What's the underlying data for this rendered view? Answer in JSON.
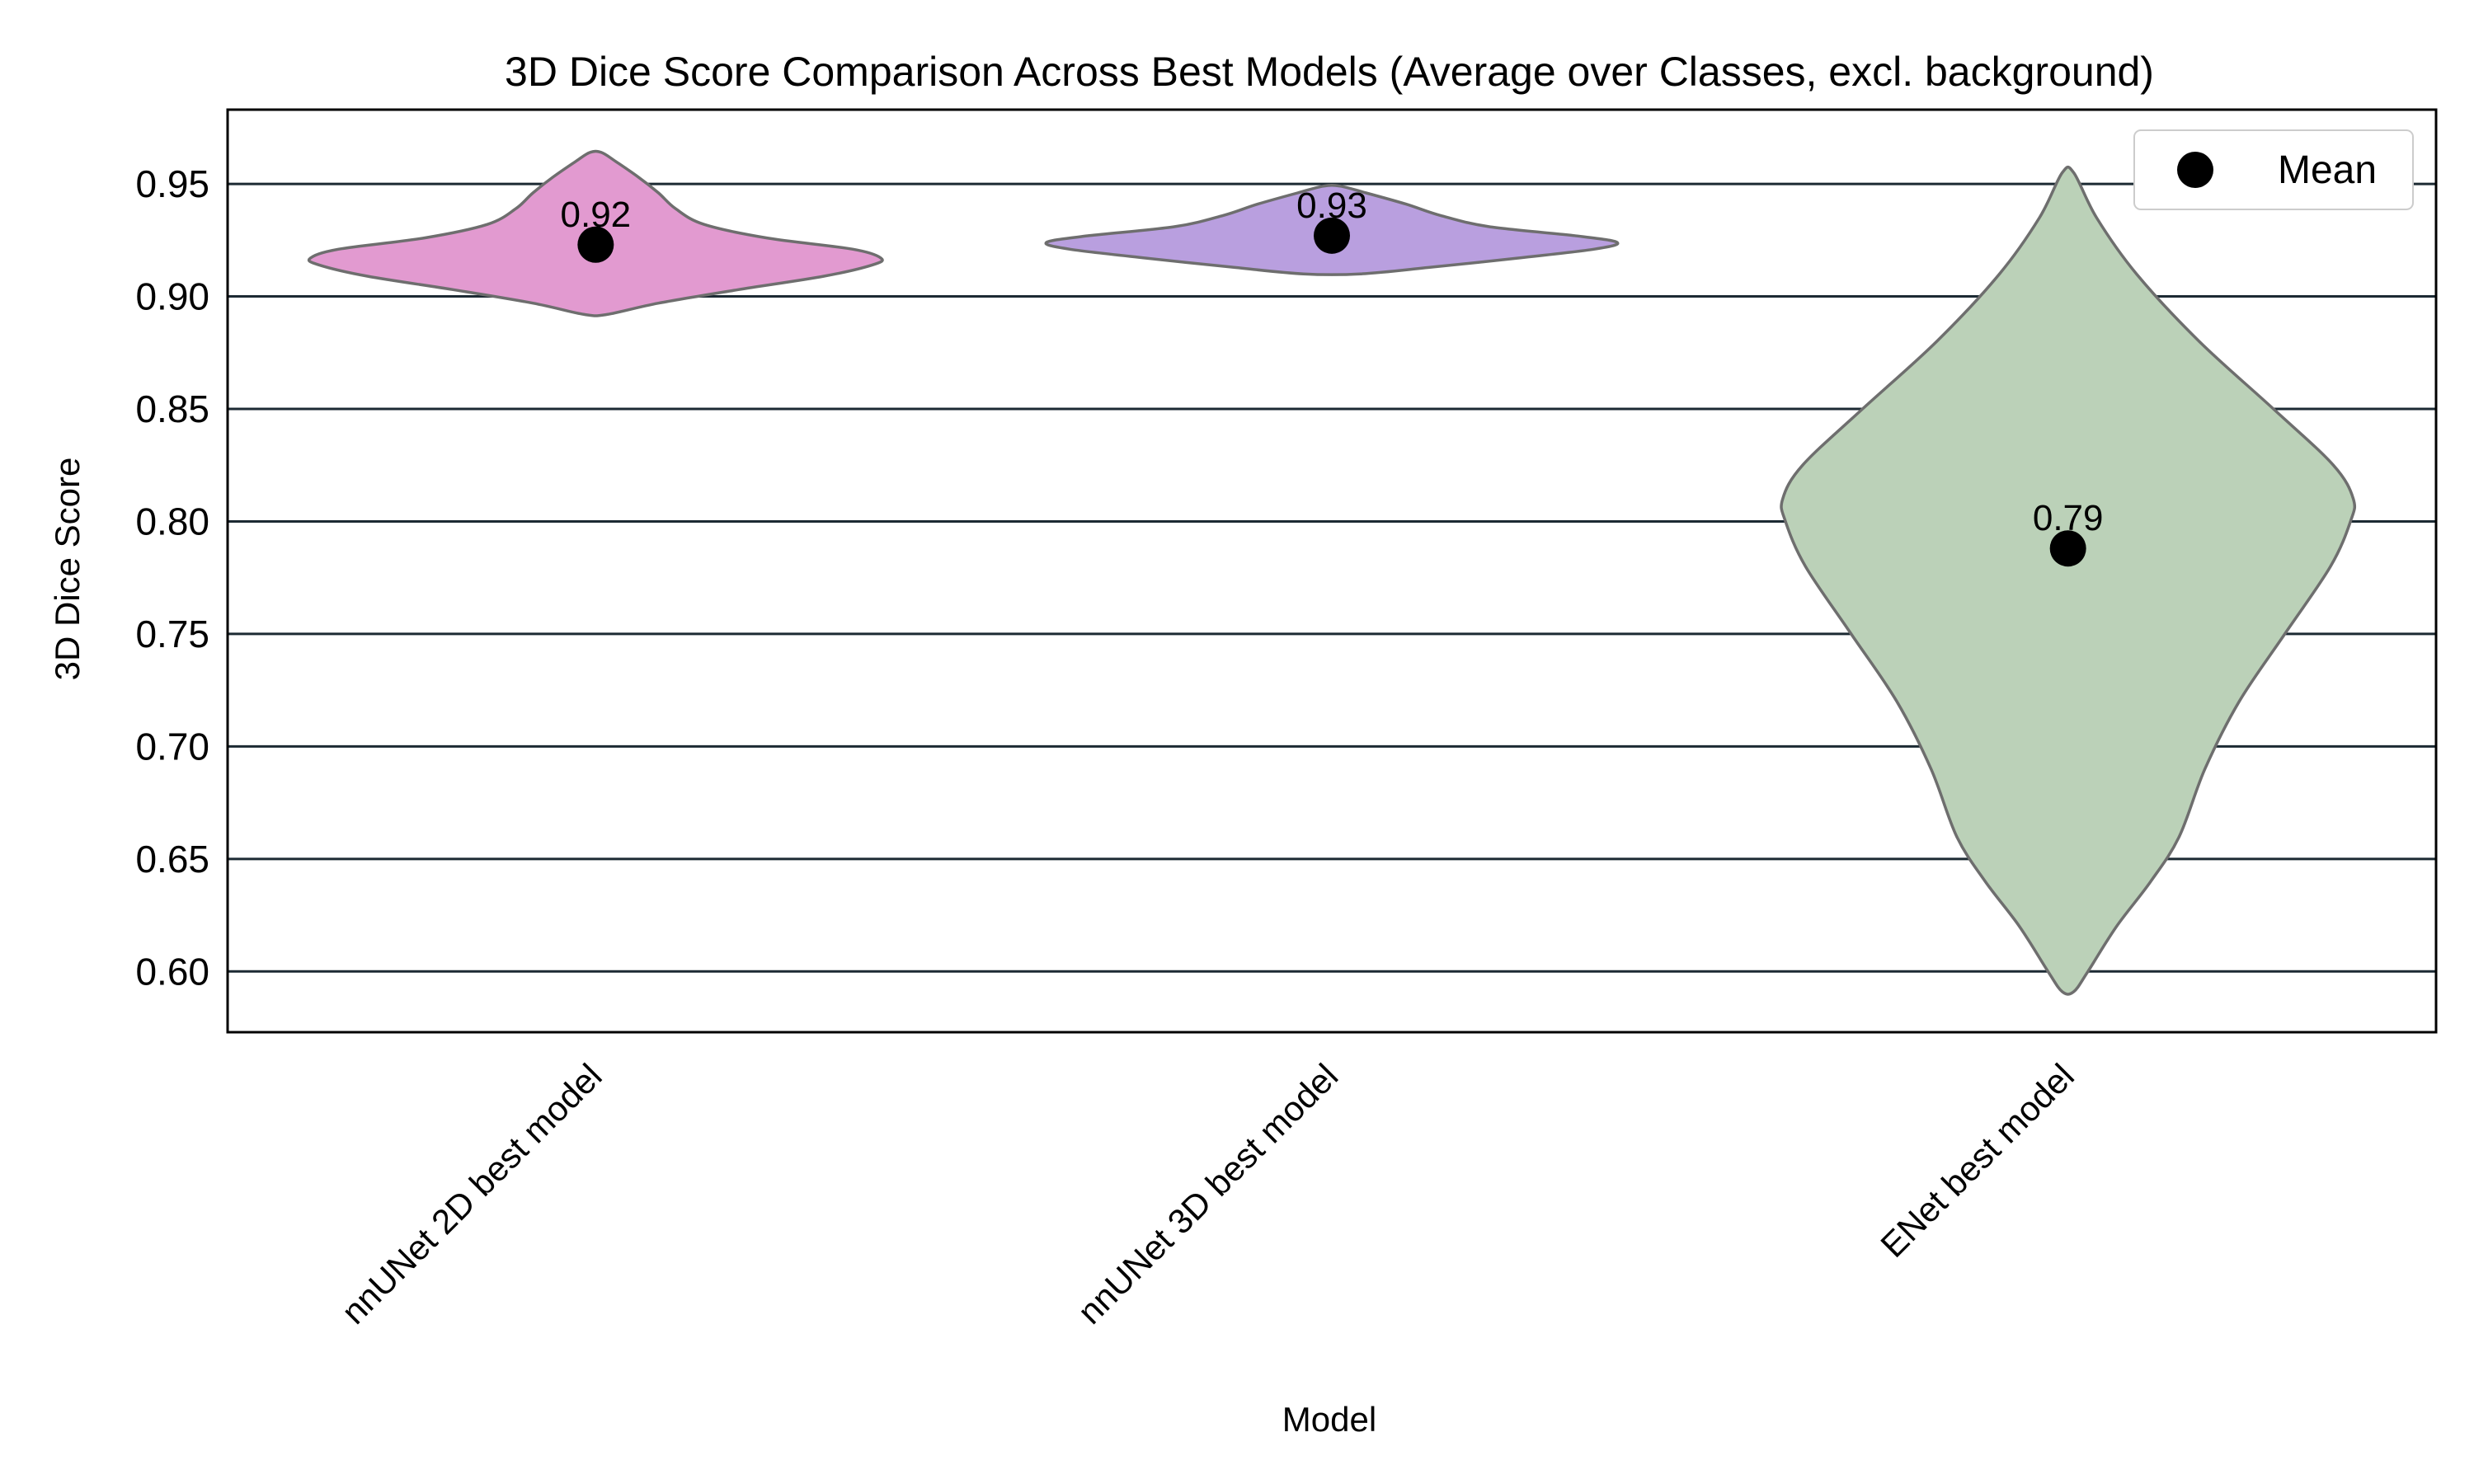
{
  "chart_data": {
    "type": "violin",
    "title": "3D Dice Score Comparison Across Best Models (Average over Classes, excl. background)",
    "xlabel": "Model",
    "ylabel": "3D Dice Score",
    "ylim": [
      0.573,
      0.983
    ],
    "yticks": [
      "0.60",
      "0.65",
      "0.70",
      "0.75",
      "0.80",
      "0.85",
      "0.90",
      "0.95"
    ],
    "grid": "horizontal",
    "legend": {
      "position": "top-right",
      "entries": [
        {
          "label": "Mean",
          "marker": "black-dot"
        }
      ]
    },
    "categories": [
      "nnUNet 2D best model",
      "nnUNet 3D best model",
      "ENet best model"
    ],
    "series": [
      {
        "category": "nnUNet 2D best model",
        "color": "#e29ad0",
        "mean": 0.923,
        "mean_label": "0.92",
        "min": 0.892,
        "max": 0.964,
        "density_profile": [
          {
            "y": 0.892,
            "w": 0.04
          },
          {
            "y": 0.897,
            "w": 0.22
          },
          {
            "y": 0.903,
            "w": 0.5
          },
          {
            "y": 0.909,
            "w": 0.8
          },
          {
            "y": 0.914,
            "w": 0.97
          },
          {
            "y": 0.917,
            "w": 1.0
          },
          {
            "y": 0.921,
            "w": 0.9
          },
          {
            "y": 0.926,
            "w": 0.6
          },
          {
            "y": 0.932,
            "w": 0.38
          },
          {
            "y": 0.939,
            "w": 0.28
          },
          {
            "y": 0.946,
            "w": 0.22
          },
          {
            "y": 0.953,
            "w": 0.15
          },
          {
            "y": 0.96,
            "w": 0.07
          },
          {
            "y": 0.964,
            "w": 0.02
          }
        ]
      },
      {
        "category": "nnUNet 3D best model",
        "color": "#b99fdf",
        "mean": 0.927,
        "mean_label": "0.93",
        "min": 0.91,
        "max": 0.949,
        "density_profile": [
          {
            "y": 0.91,
            "w": 0.1
          },
          {
            "y": 0.913,
            "w": 0.35
          },
          {
            "y": 0.917,
            "w": 0.65
          },
          {
            "y": 0.921,
            "w": 0.92
          },
          {
            "y": 0.924,
            "w": 1.0
          },
          {
            "y": 0.927,
            "w": 0.85
          },
          {
            "y": 0.931,
            "w": 0.55
          },
          {
            "y": 0.936,
            "w": 0.38
          },
          {
            "y": 0.941,
            "w": 0.26
          },
          {
            "y": 0.946,
            "w": 0.12
          },
          {
            "y": 0.949,
            "w": 0.03
          }
        ]
      },
      {
        "category": "ENet best model",
        "color": "#bbd1b8",
        "mean": 0.788,
        "mean_label": "0.79",
        "min": 0.591,
        "max": 0.955,
        "density_profile": [
          {
            "y": 0.591,
            "w": 0.02
          },
          {
            "y": 0.6,
            "w": 0.07
          },
          {
            "y": 0.62,
            "w": 0.17
          },
          {
            "y": 0.64,
            "w": 0.29
          },
          {
            "y": 0.66,
            "w": 0.39
          },
          {
            "y": 0.69,
            "w": 0.48
          },
          {
            "y": 0.72,
            "w": 0.6
          },
          {
            "y": 0.75,
            "w": 0.76
          },
          {
            "y": 0.78,
            "w": 0.92
          },
          {
            "y": 0.8,
            "w": 0.99
          },
          {
            "y": 0.81,
            "w": 1.0
          },
          {
            "y": 0.825,
            "w": 0.93
          },
          {
            "y": 0.85,
            "w": 0.72
          },
          {
            "y": 0.88,
            "w": 0.46
          },
          {
            "y": 0.91,
            "w": 0.24
          },
          {
            "y": 0.935,
            "w": 0.1
          },
          {
            "y": 0.955,
            "w": 0.02
          }
        ]
      }
    ]
  }
}
